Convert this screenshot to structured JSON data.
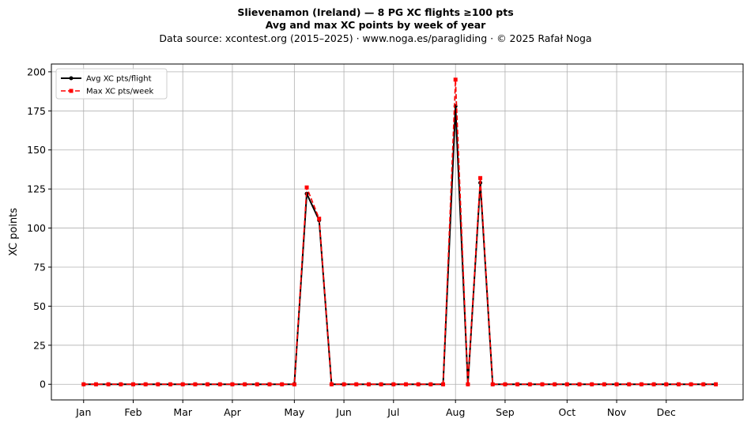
{
  "header": {
    "title": "Slievenamon (Ireland)  —  8 PG XC flights ≥100 pts",
    "subtitle": "Avg and max XC points by week of year",
    "source": "Data source: xcontest.org (2015–2025)  ·  www.noga.es/paragliding  ·  © 2025 Rafał Noga"
  },
  "chart_data": {
    "type": "line",
    "title": "Slievenamon (Ireland)  —  8 PG XC flights ≥100 pts",
    "subtitle": "Avg and max XC points by week of year",
    "xlabel": "",
    "ylabel": "XC points",
    "x_unit": "week of year",
    "xlim": [
      -1.6,
      54.2
    ],
    "ylim": [
      -10,
      205
    ],
    "yticks": [
      0,
      25,
      50,
      75,
      100,
      125,
      150,
      175,
      200
    ],
    "grid": true,
    "legend_position": "top-left",
    "month_ticks": [
      {
        "label": "Jan",
        "week": 1
      },
      {
        "label": "Feb",
        "week": 5
      },
      {
        "label": "Mar",
        "week": 9
      },
      {
        "label": "Apr",
        "week": 13
      },
      {
        "label": "May",
        "week": 18
      },
      {
        "label": "Jun",
        "week": 22
      },
      {
        "label": "Jul",
        "week": 26
      },
      {
        "label": "Aug",
        "week": 31
      },
      {
        "label": "Sep",
        "week": 35
      },
      {
        "label": "Oct",
        "week": 40
      },
      {
        "label": "Nov",
        "week": 44
      },
      {
        "label": "Dec",
        "week": 48
      }
    ],
    "x": [
      1,
      2,
      3,
      4,
      5,
      6,
      7,
      8,
      9,
      10,
      11,
      12,
      13,
      14,
      15,
      16,
      17,
      18,
      19,
      20,
      21,
      22,
      23,
      24,
      25,
      26,
      27,
      28,
      29,
      30,
      31,
      32,
      33,
      34,
      35,
      36,
      37,
      38,
      39,
      40,
      41,
      42,
      43,
      44,
      45,
      46,
      47,
      48,
      49,
      50,
      51,
      52
    ],
    "series": [
      {
        "name": "Avg XC pts/flight",
        "color": "#000000",
        "style": "solid",
        "marker": "dot",
        "values": [
          0,
          0,
          0,
          0,
          0,
          0,
          0,
          0,
          0,
          0,
          0,
          0,
          0,
          0,
          0,
          0,
          0,
          0,
          122,
          105,
          0,
          0,
          0,
          0,
          0,
          0,
          0,
          0,
          0,
          0,
          178,
          0,
          129,
          0,
          0,
          0,
          0,
          0,
          0,
          0,
          0,
          0,
          0,
          0,
          0,
          0,
          0,
          0,
          0,
          0,
          0,
          0
        ]
      },
      {
        "name": "Max XC pts/week",
        "color": "#ff0000",
        "style": "dashed",
        "marker": "square",
        "values": [
          0,
          0,
          0,
          0,
          0,
          0,
          0,
          0,
          0,
          0,
          0,
          0,
          0,
          0,
          0,
          0,
          0,
          0,
          126,
          106,
          0,
          0,
          0,
          0,
          0,
          0,
          0,
          0,
          0,
          0,
          195,
          0,
          132,
          0,
          0,
          0,
          0,
          0,
          0,
          0,
          0,
          0,
          0,
          0,
          0,
          0,
          0,
          0,
          0,
          0,
          0,
          0
        ]
      }
    ]
  }
}
